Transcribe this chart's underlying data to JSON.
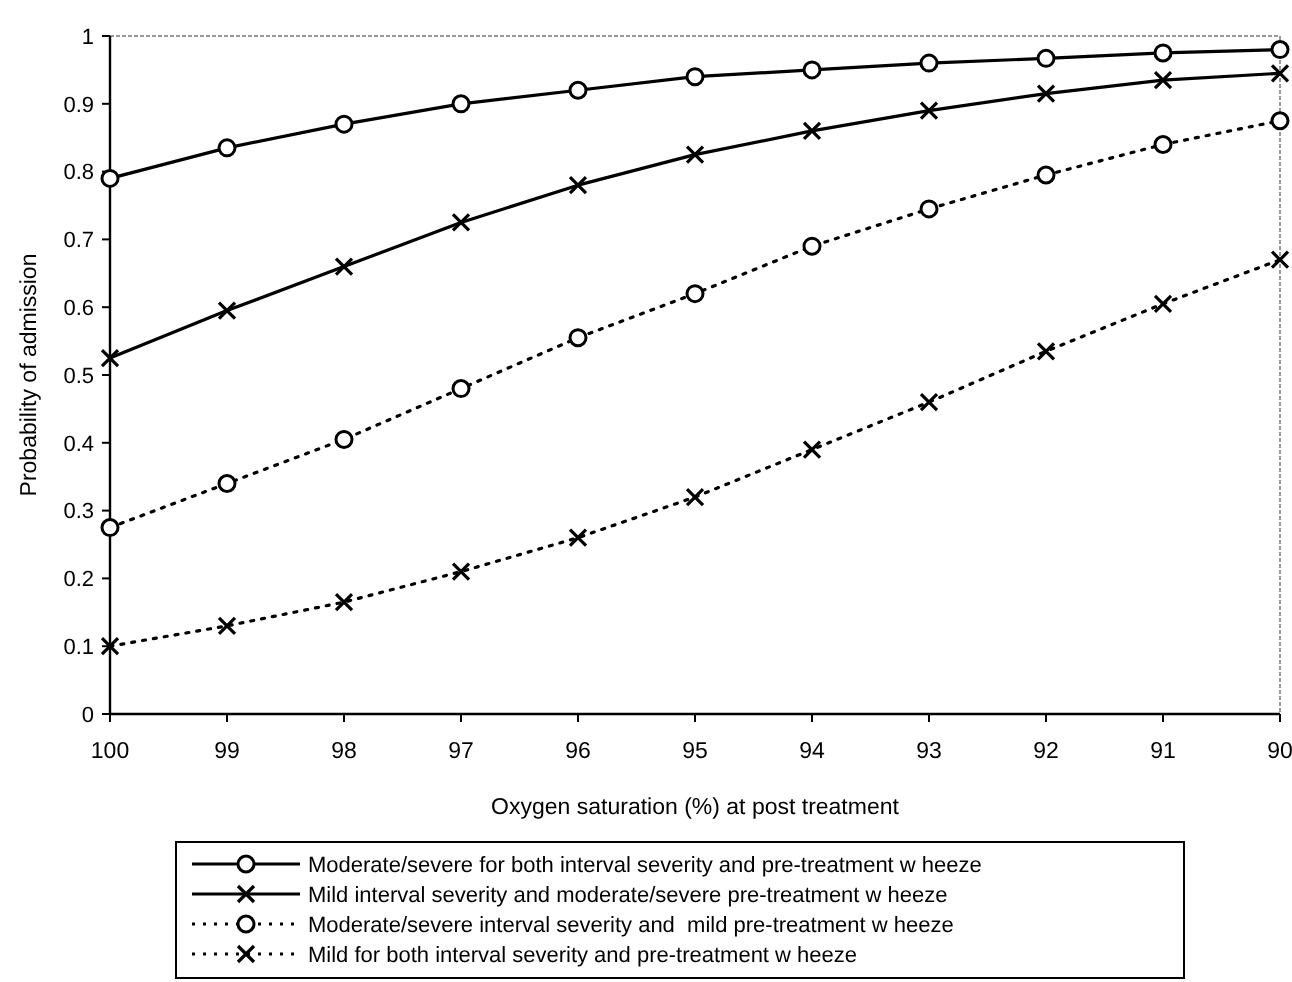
{
  "chart_data": {
    "type": "line",
    "xlabel": "Oxygen saturation (%) at post treatment",
    "ylabel": "Probability of admission",
    "x": [
      100,
      99,
      98,
      97,
      96,
      95,
      94,
      93,
      92,
      91,
      90
    ],
    "xlim": [
      100,
      90
    ],
    "xticks": [
      100,
      99,
      98,
      97,
      96,
      95,
      94,
      93,
      92,
      91,
      90
    ],
    "ylim": [
      0,
      1
    ],
    "yticks": [
      0,
      0.1,
      0.2,
      0.3,
      0.4,
      0.5,
      0.6,
      0.7,
      0.8,
      0.9,
      1
    ],
    "grid": false,
    "legend": "bottom",
    "series": [
      {
        "name": "Moderate/severe for both interval severity and pre-treatment w heeze",
        "color": "#000000",
        "marker": "circle",
        "line_style": "solid",
        "values": [
          0.79,
          0.835,
          0.87,
          0.9,
          0.92,
          0.94,
          0.95,
          0.96,
          0.967,
          0.975,
          0.98
        ]
      },
      {
        "name": "Mild interval severity and moderate/severe pre-treatment w heeze",
        "color": "#000000",
        "marker": "cross",
        "line_style": "solid",
        "values": [
          0.525,
          0.595,
          0.66,
          0.725,
          0.78,
          0.825,
          0.86,
          0.89,
          0.915,
          0.935,
          0.945
        ]
      },
      {
        "name": "Moderate/severe interval severity and  mild pre-treatment w heeze",
        "color": "#000000",
        "marker": "circle",
        "line_style": "dotted",
        "values": [
          0.275,
          0.34,
          0.405,
          0.48,
          0.555,
          0.62,
          0.69,
          0.745,
          0.795,
          0.84,
          0.875
        ]
      },
      {
        "name": "Mild for both interval severity and pre-treatment w heeze",
        "color": "#000000",
        "marker": "cross",
        "line_style": "dotted",
        "values": [
          0.1,
          0.13,
          0.165,
          0.21,
          0.26,
          0.32,
          0.39,
          0.46,
          0.535,
          0.605,
          0.67
        ]
      }
    ]
  }
}
